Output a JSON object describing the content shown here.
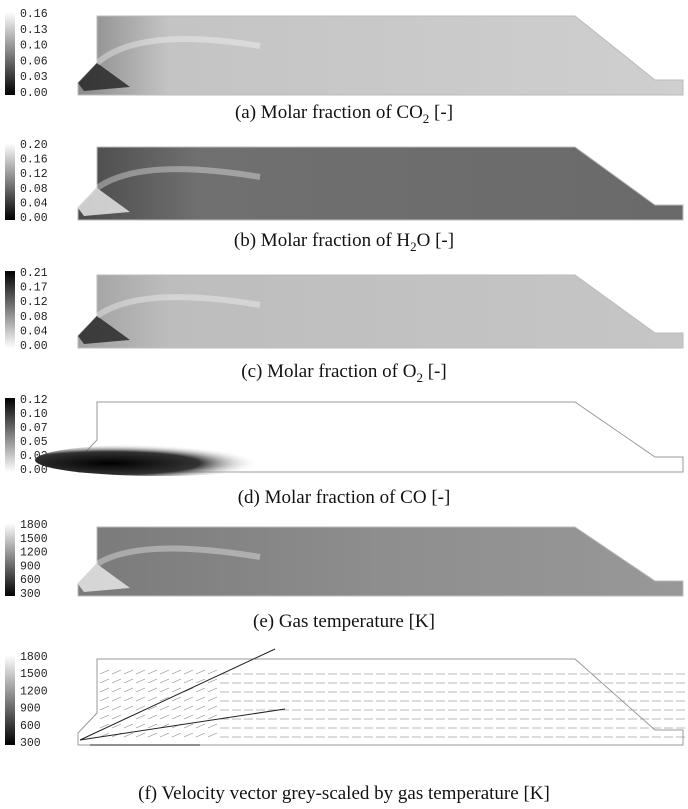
{
  "panels": [
    {
      "ticks": [
        "0.16",
        "0.13",
        "0.10",
        "0.06",
        "0.03",
        "0.00"
      ],
      "caption": {
        "text": "(a) Molar fraction of CO",
        "sub": "2",
        "tail": " [-]"
      }
    },
    {
      "ticks": [
        "0.20",
        "0.16",
        "0.12",
        "0.08",
        "0.04",
        "0.00"
      ],
      "caption": {
        "text": "(b) Molar fraction of H",
        "sub": "2",
        "tail": "O [-]"
      }
    },
    {
      "ticks": [
        "0.21",
        "0.17",
        "0.12",
        "0.08",
        "0.04",
        "0.00"
      ],
      "caption": {
        "text": "(c) Molar fraction of O",
        "sub": "2",
        "tail": " [-]"
      }
    },
    {
      "ticks": [
        "0.12",
        "0.10",
        "0.07",
        "0.05",
        "0.02",
        "0.00"
      ],
      "caption": {
        "text": "(d) Molar fraction of CO [-]"
      }
    },
    {
      "ticks": [
        "1800",
        "1500",
        "1200",
        "900",
        "600",
        "300"
      ],
      "caption": {
        "text": "(e) Gas temperature [K]"
      }
    },
    {
      "ticks": [
        "1800",
        "1500",
        "1200",
        "900",
        "600",
        "300"
      ],
      "caption": {
        "text": "(f) Velocity vector grey-scaled by gas temperature [K]"
      }
    }
  ]
}
